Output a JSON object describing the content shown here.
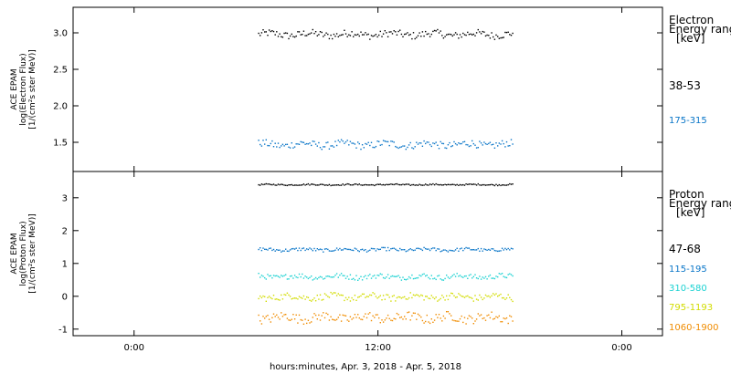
{
  "chart_data": {
    "type": "scatter",
    "xlabel": "hours:minutes, Apr.  3, 2018 - Apr.  5, 2018",
    "x_ticks": [
      "0:00",
      "12:00",
      "0:00"
    ],
    "x_tick_hours": [
      0,
      12,
      24
    ],
    "x_range_hours": [
      -3,
      26
    ],
    "data_span_hours": [
      6.1,
      18.6
    ],
    "grid": false,
    "panels": [
      {
        "id": "electron",
        "ylabel_lines": [
          "ACE EPAM",
          "log(Electron Flux)",
          "[1/(cm²s ster MeV)]"
        ],
        "ylim": [
          1.1,
          3.35
        ],
        "yticks": [
          1.5,
          2.0,
          2.5,
          3.0
        ],
        "ytick_labels": [
          "1.5",
          "2.0",
          "2.5",
          "3.0"
        ],
        "legend_title": [
          "Electron",
          "Energy ranges",
          "[keV]"
        ],
        "series": [
          {
            "name": "38-53",
            "color": "#000000",
            "mean": 2.98,
            "spread": 0.05
          },
          {
            "name": "175-315",
            "color": "#0a76c8",
            "mean": 1.47,
            "spread": 0.05
          }
        ]
      },
      {
        "id": "proton",
        "ylabel_lines": [
          "ACE EPAM",
          "log(Proton Flux)",
          "[1/(cm²s ster MeV)]"
        ],
        "ylim": [
          -1.2,
          3.8
        ],
        "yticks": [
          -1,
          0,
          1,
          2,
          3
        ],
        "ytick_labels": [
          "-1",
          "0",
          "1",
          "2",
          "3"
        ],
        "legend_title": [
          "Proton",
          "Energy ranges",
          "[keV]"
        ],
        "series": [
          {
            "name": "47-68",
            "color": "#000000",
            "mean": 3.4,
            "spread": 0.02
          },
          {
            "name": "115-195",
            "color": "#0a76c8",
            "mean": 1.42,
            "spread": 0.05
          },
          {
            "name": "310-580",
            "color": "#1cd2d2",
            "mean": 0.6,
            "spread": 0.08
          },
          {
            "name": "795-1193",
            "color": "#d2dc00",
            "mean": -0.02,
            "spread": 0.1
          },
          {
            "name": "1060-1900",
            "color": "#f08c00",
            "mean": -0.65,
            "spread": 0.14
          }
        ]
      }
    ]
  }
}
